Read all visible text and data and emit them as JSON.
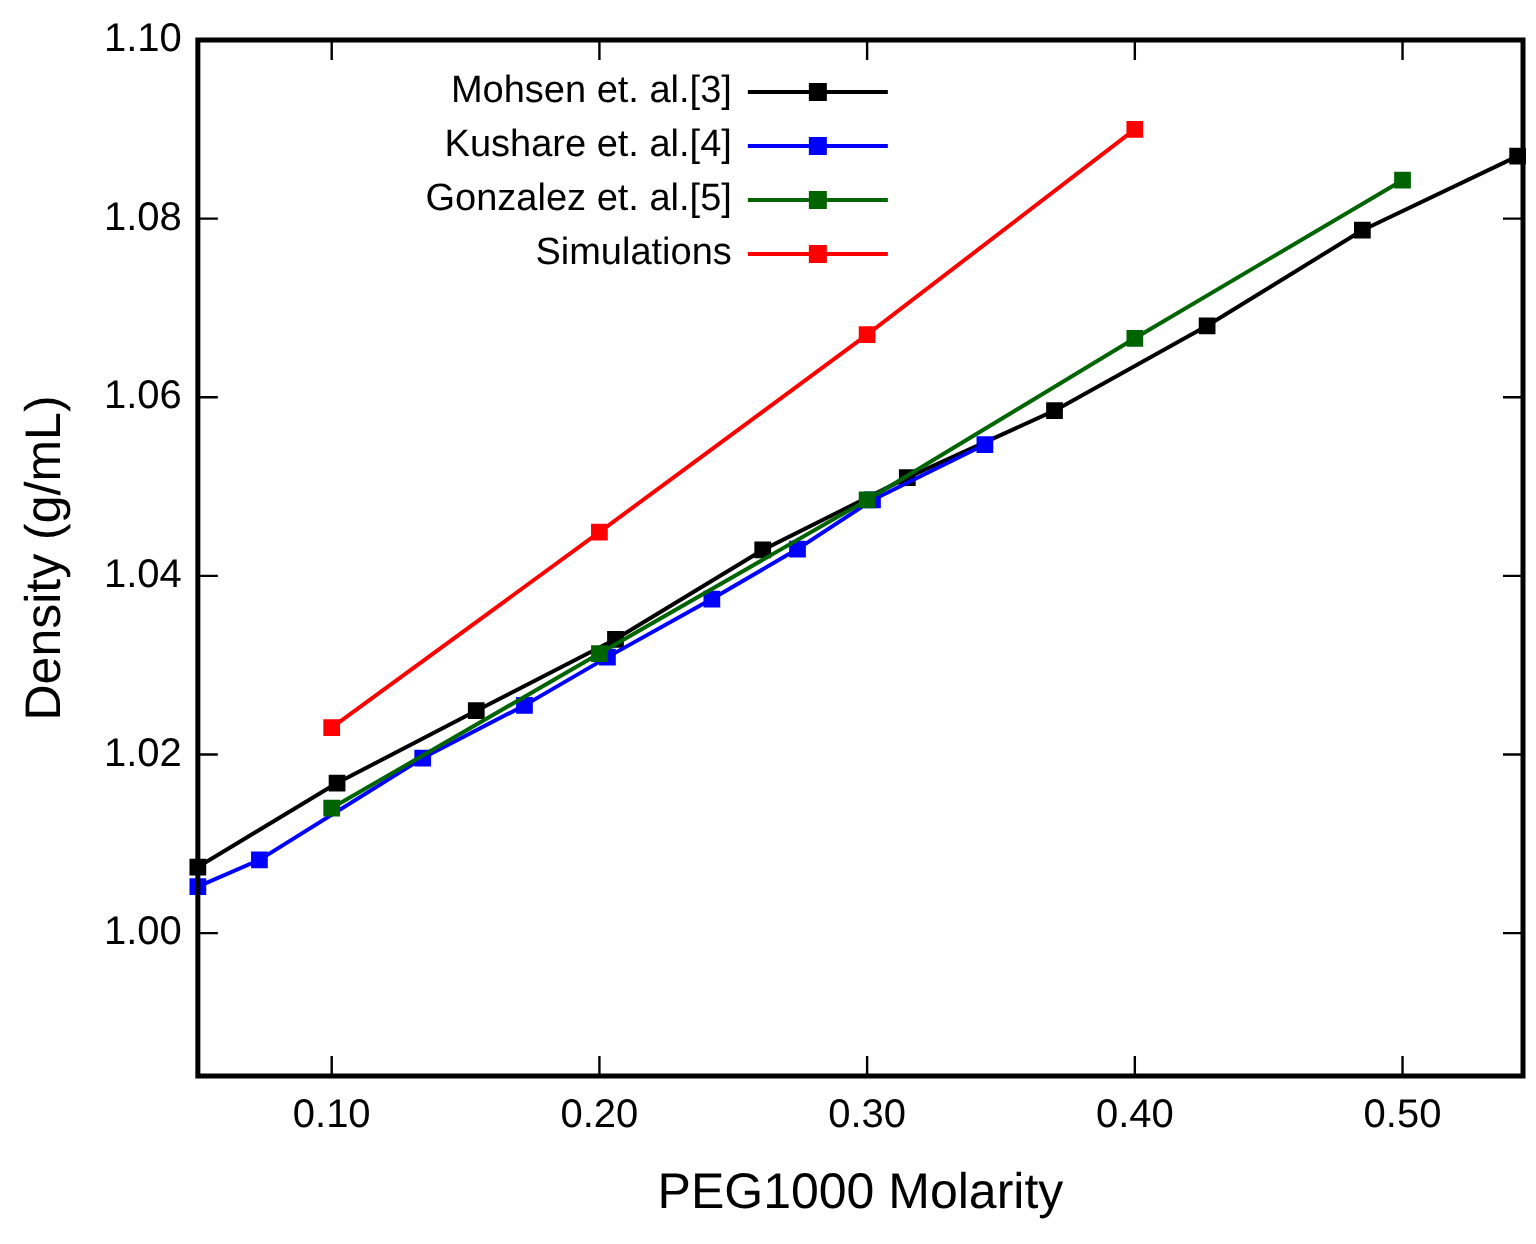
{
  "chart_data": {
    "type": "line",
    "xlabel": "PEG1000 Molarity",
    "ylabel": "Density (g/mL)",
    "xlim": [
      0.05,
      0.545
    ],
    "ylim": [
      0.984,
      1.1
    ],
    "xticks": [
      {
        "value": 0.1,
        "label": "0.10"
      },
      {
        "value": 0.2,
        "label": "0.20"
      },
      {
        "value": 0.3,
        "label": "0.30"
      },
      {
        "value": 0.4,
        "label": "0.40"
      },
      {
        "value": 0.5,
        "label": "0.50"
      }
    ],
    "yticks": [
      {
        "value": 1.0,
        "label": "1.00"
      },
      {
        "value": 1.02,
        "label": "1.02"
      },
      {
        "value": 1.04,
        "label": "1.04"
      },
      {
        "value": 1.06,
        "label": "1.06"
      },
      {
        "value": 1.08,
        "label": "1.08"
      },
      {
        "value": 1.1,
        "label": "1.10"
      }
    ],
    "grid": false,
    "legend": "top",
    "marker": "square",
    "line_style": "solid",
    "series": [
      {
        "name": "Mohsen et. al.[3]",
        "color": "#000000",
        "x": [
          0.05,
          0.102,
          0.154,
          0.206,
          0.261,
          0.315,
          0.37,
          0.427,
          0.485,
          0.543
        ],
        "values": [
          1.0074,
          1.0168,
          1.0249,
          1.0329,
          1.0429,
          1.051,
          1.0585,
          1.068,
          1.0787,
          1.087
        ]
      },
      {
        "name": "Kushare et. al.[4]",
        "color": "#0000ff",
        "x": [
          0.05,
          0.073,
          0.134,
          0.172,
          0.203,
          0.242,
          0.274,
          0.302,
          0.344
        ],
        "values": [
          1.0052,
          1.0082,
          1.0196,
          1.0255,
          1.0309,
          1.0374,
          1.043,
          1.0485,
          1.0547
        ]
      },
      {
        "name": "Gonzalez et. al.[5]",
        "color": "#006400",
        "x": [
          0.1,
          0.2,
          0.3,
          0.4,
          0.5
        ],
        "values": [
          1.014,
          1.0313,
          1.0485,
          1.0666,
          1.0843
        ]
      },
      {
        "name": "Simulations",
        "color": "#ff0000",
        "x": [
          0.1,
          0.2,
          0.3,
          0.4
        ],
        "values": [
          1.023,
          1.0449,
          1.067,
          1.09
        ]
      }
    ]
  }
}
